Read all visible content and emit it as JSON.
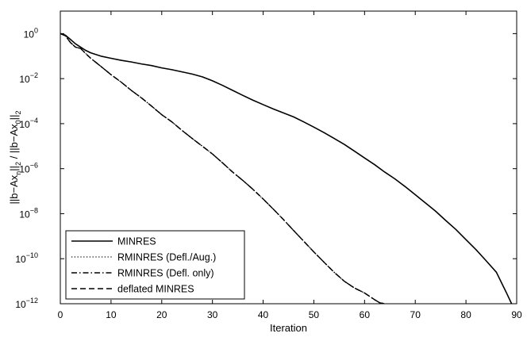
{
  "chart_data": {
    "type": "line",
    "title": "",
    "xlabel": "Iteration",
    "ylabel": "||b−Ax_n||_2 / ||b−Ax_0||_2",
    "xlim": [
      0,
      90
    ],
    "ylim": [
      1e-12,
      10
    ],
    "yscale": "log",
    "grid": false,
    "legend_position": "bottom-left",
    "x_ticks": [
      "0",
      "10",
      "20",
      "30",
      "40",
      "50",
      "60",
      "70",
      "80",
      "90"
    ],
    "y_ticks": [
      {
        "base": "10",
        "exp": "0",
        "value": 1
      },
      {
        "base": "10",
        "exp": "−2",
        "value": 0.01
      },
      {
        "base": "10",
        "exp": "−4",
        "value": 0.0001
      },
      {
        "base": "10",
        "exp": "−6",
        "value": 1e-06
      },
      {
        "base": "10",
        "exp": "−8",
        "value": 1e-08
      },
      {
        "base": "10",
        "exp": "−10",
        "value": 1e-10
      },
      {
        "base": "10",
        "exp": "−12",
        "value": 1e-12
      }
    ],
    "series": [
      {
        "name": "MINRES",
        "dash": "solid",
        "x": [
          0,
          1,
          2,
          3,
          4,
          5,
          6,
          8,
          10,
          12,
          14,
          16,
          18,
          20,
          22,
          24,
          26,
          28,
          30,
          32,
          34,
          36,
          38,
          40,
          42,
          44,
          46,
          48,
          50,
          52,
          54,
          56,
          58,
          60,
          62,
          64,
          66,
          68,
          70,
          72,
          74,
          76,
          78,
          80,
          82,
          84,
          86,
          88,
          89
        ],
        "y": [
          1,
          0.85,
          0.55,
          0.35,
          0.25,
          0.18,
          0.14,
          0.1,
          0.08,
          0.065,
          0.055,
          0.045,
          0.038,
          0.03,
          0.025,
          0.02,
          0.016,
          0.012,
          0.008,
          0.005,
          0.003,
          0.0018,
          0.0011,
          0.0007,
          0.00045,
          0.0003,
          0.0002,
          0.00012,
          7e-05,
          4e-05,
          2.2e-05,
          1.2e-05,
          6e-06,
          3e-06,
          1.5e-06,
          7e-07,
          3.5e-07,
          1.6e-07,
          7e-08,
          3e-08,
          1.3e-08,
          5e-09,
          2e-09,
          7e-10,
          2.5e-10,
          8e-11,
          2.5e-11,
          3e-12,
          1e-12
        ]
      },
      {
        "name": "RMINRES (Defl./Aug.)",
        "dash": "dotted",
        "x": [
          0,
          1,
          2,
          3,
          4,
          5,
          6,
          8,
          10,
          12,
          14,
          16,
          18,
          20,
          22,
          24,
          26,
          28,
          30,
          32,
          34,
          36,
          38,
          40,
          42,
          44,
          46,
          48,
          50,
          52,
          54,
          56,
          58,
          60,
          62,
          63,
          64
        ],
        "y": [
          1,
          0.8,
          0.4,
          0.25,
          0.22,
          0.13,
          0.08,
          0.035,
          0.015,
          0.007,
          0.003,
          0.0014,
          0.0006,
          0.00025,
          0.00012,
          5e-05,
          2.2e-05,
          1e-05,
          4.5e-06,
          1.8e-06,
          7e-07,
          3e-07,
          1.2e-07,
          4.5e-08,
          1.6e-08,
          5.5e-09,
          1.8e-09,
          6e-10,
          2e-10,
          7e-11,
          2.5e-11,
          1e-11,
          5e-12,
          3e-12,
          1.5e-12,
          1.1e-12,
          1e-12
        ]
      },
      {
        "name": "RMINRES (Defl. only)",
        "dash": "dashdot",
        "x": [
          0,
          1,
          2,
          3,
          4,
          5,
          6,
          8,
          10,
          12,
          14,
          16,
          18,
          20,
          22,
          24,
          26,
          28,
          30,
          32,
          34,
          36,
          38,
          40,
          42,
          44,
          46,
          48,
          50,
          52,
          54,
          56,
          58,
          60,
          62,
          63,
          64
        ],
        "y": [
          1,
          0.8,
          0.4,
          0.25,
          0.22,
          0.13,
          0.08,
          0.035,
          0.015,
          0.007,
          0.003,
          0.0014,
          0.0006,
          0.00025,
          0.00012,
          5e-05,
          2.2e-05,
          1e-05,
          4.5e-06,
          1.8e-06,
          7e-07,
          3e-07,
          1.2e-07,
          4.5e-08,
          1.6e-08,
          5.5e-09,
          1.8e-09,
          6e-10,
          2e-10,
          7e-11,
          2.5e-11,
          1e-11,
          5e-12,
          3e-12,
          1.5e-12,
          1.1e-12,
          1e-12
        ]
      },
      {
        "name": "deflated MINRES",
        "dash": "dashed",
        "x": [
          0,
          1,
          2,
          3,
          4,
          5,
          6,
          8,
          10,
          12,
          14,
          16,
          18,
          20,
          22,
          24,
          26,
          28,
          30,
          32,
          34,
          36,
          38,
          40,
          42,
          44,
          46,
          48,
          50,
          52,
          54,
          56,
          58,
          60,
          62,
          63,
          64
        ],
        "y": [
          1,
          0.8,
          0.4,
          0.25,
          0.22,
          0.13,
          0.08,
          0.035,
          0.015,
          0.007,
          0.003,
          0.0014,
          0.0006,
          0.00025,
          0.00012,
          5e-05,
          2.2e-05,
          1e-05,
          4.5e-06,
          1.8e-06,
          7e-07,
          3e-07,
          1.2e-07,
          4.5e-08,
          1.6e-08,
          5.5e-09,
          1.8e-09,
          6e-10,
          2e-10,
          7e-11,
          2.5e-11,
          1e-11,
          5e-12,
          3e-12,
          1.5e-12,
          1.1e-12,
          1e-12
        ]
      }
    ]
  }
}
